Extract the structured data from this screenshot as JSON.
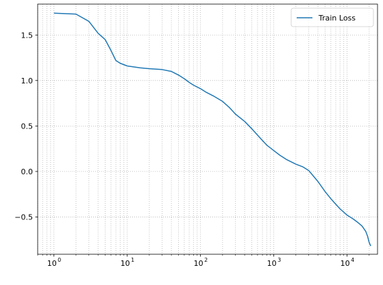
{
  "chart_data": {
    "type": "line",
    "title": "",
    "xlabel": "",
    "ylabel": "",
    "x_scale": "log",
    "xlim": [
      0.6,
      26000
    ],
    "ylim": [
      -0.91,
      1.84
    ],
    "grid": {
      "major": true,
      "minor": true,
      "style": "dotted"
    },
    "legend": {
      "location": "upper right"
    },
    "x_ticks": [
      {
        "value": 1,
        "label": "10",
        "exp": "0"
      },
      {
        "value": 10,
        "label": "10",
        "exp": "1"
      },
      {
        "value": 100,
        "label": "10",
        "exp": "2"
      },
      {
        "value": 1000,
        "label": "10",
        "exp": "3"
      },
      {
        "value": 10000,
        "label": "10",
        "exp": "4"
      }
    ],
    "y_ticks": [
      {
        "value": -0.5,
        "label": "−0.5"
      },
      {
        "value": 0.0,
        "label": "0.0"
      },
      {
        "value": 0.5,
        "label": "0.5"
      },
      {
        "value": 1.0,
        "label": "1.0"
      },
      {
        "value": 1.5,
        "label": "1.5"
      }
    ],
    "series": [
      {
        "name": "Train Loss",
        "color": "#1f77b4",
        "x": [
          1,
          2,
          3,
          4,
          5,
          6,
          7,
          8,
          10,
          15,
          20,
          30,
          40,
          50,
          60,
          70,
          80,
          100,
          120,
          150,
          200,
          250,
          300,
          400,
          500,
          600,
          700,
          800,
          1000,
          1200,
          1500,
          2000,
          2500,
          3000,
          4000,
          5000,
          6000,
          7000,
          8000,
          10000,
          12000,
          14000,
          16000,
          18000,
          19000,
          20000,
          21000
        ],
        "y": [
          1.74,
          1.73,
          1.65,
          1.52,
          1.45,
          1.33,
          1.22,
          1.19,
          1.16,
          1.14,
          1.13,
          1.12,
          1.1,
          1.06,
          1.02,
          0.98,
          0.95,
          0.91,
          0.87,
          0.83,
          0.77,
          0.7,
          0.63,
          0.55,
          0.47,
          0.4,
          0.34,
          0.29,
          0.23,
          0.18,
          0.13,
          0.08,
          0.05,
          0.01,
          -0.11,
          -0.22,
          -0.3,
          -0.36,
          -0.41,
          -0.48,
          -0.52,
          -0.56,
          -0.6,
          -0.66,
          -0.71,
          -0.78,
          -0.82
        ]
      }
    ]
  }
}
